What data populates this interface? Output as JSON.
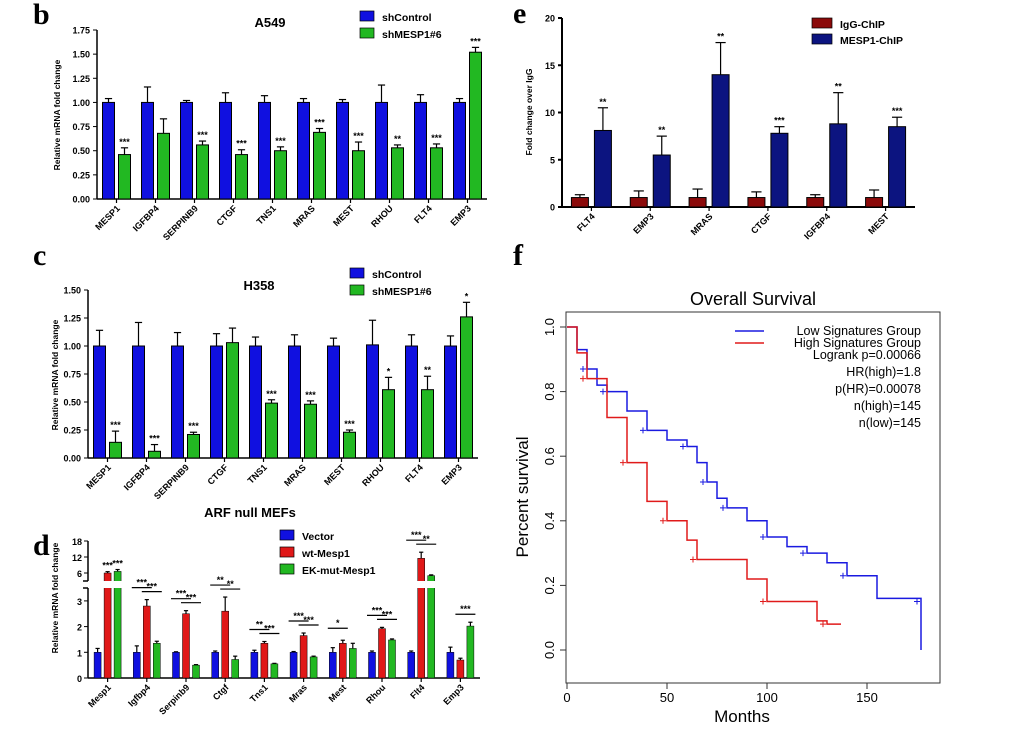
{
  "chart_data": [
    {
      "panel": "b",
      "type": "bar",
      "title": "A549",
      "ylabel": "Relative mRNA fold change",
      "xlabel": "",
      "ylim": [
        0,
        1.75
      ],
      "yticks": [
        "0.00",
        "0.25",
        "0.50",
        "0.75",
        "1.00",
        "1.25",
        "1.50",
        "1.75"
      ],
      "categories": [
        "MESP1",
        "IGFBP4",
        "SERPINB9",
        "CTGF",
        "TNS1",
        "MRAS",
        "MEST",
        "RHOU",
        "FLT4",
        "EMP3"
      ],
      "legend_position": "top-right",
      "series": [
        {
          "name": "shControl",
          "color": "#1010e0",
          "values": [
            1,
            1,
            1,
            1,
            1,
            1,
            1,
            1,
            1,
            1
          ],
          "errors": [
            0.04,
            0.16,
            0.02,
            0.1,
            0.07,
            0.04,
            0.03,
            0.18,
            0.08,
            0.04
          ],
          "significance": [
            "",
            "",
            "",
            "",
            "",
            "",
            "",
            "",
            "",
            ""
          ]
        },
        {
          "name": "shMESP1#6",
          "color": "#22b822",
          "values": [
            0.46,
            0.68,
            0.56,
            0.46,
            0.5,
            0.69,
            0.5,
            0.53,
            0.53,
            1.52
          ],
          "errors": [
            0.07,
            0.15,
            0.04,
            0.05,
            0.04,
            0.04,
            0.09,
            0.03,
            0.04,
            0.05
          ],
          "significance": [
            "***",
            "",
            "***",
            "***",
            "***",
            "***",
            "***",
            "**",
            "***",
            "***"
          ]
        }
      ]
    },
    {
      "panel": "c",
      "type": "bar",
      "title": "H358",
      "ylabel": "Relative mRNA fold change",
      "xlabel": "",
      "ylim": [
        0,
        1.5
      ],
      "yticks": [
        "0.00",
        "0.25",
        "0.50",
        "0.75",
        "1.00",
        "1.25",
        "1.50"
      ],
      "categories": [
        "MESP1",
        "IGFBP4",
        "SERPINB9",
        "CTGF",
        "TNS1",
        "MRAS",
        "MEST",
        "RHOU",
        "FLT4",
        "EMP3"
      ],
      "legend_position": "top-right",
      "series": [
        {
          "name": "shControl",
          "color": "#1010e0",
          "values": [
            1,
            1,
            1,
            1,
            1,
            1,
            1,
            1.01,
            1,
            1
          ],
          "errors": [
            0.14,
            0.21,
            0.12,
            0.11,
            0.08,
            0.1,
            0.07,
            0.22,
            0.1,
            0.09
          ],
          "significance": [
            "",
            "",
            "",
            "",
            "",
            "",
            "",
            "",
            "",
            ""
          ]
        },
        {
          "name": "shMESP1#6",
          "color": "#22b822",
          "values": [
            0.14,
            0.06,
            0.21,
            1.03,
            0.49,
            0.48,
            0.23,
            0.61,
            0.61,
            1.26
          ],
          "errors": [
            0.1,
            0.06,
            0.02,
            0.13,
            0.03,
            0.03,
            0.02,
            0.11,
            0.12,
            0.13
          ],
          "significance": [
            "***",
            "***",
            "***",
            "",
            "***",
            "***",
            "***",
            "*",
            "**",
            "*"
          ]
        }
      ]
    },
    {
      "panel": "d",
      "type": "bar",
      "title": "ARF null MEFs",
      "ylabel": "Relative mRNA fold change",
      "xlabel": "",
      "ylim": [
        0,
        18
      ],
      "axis_break": [
        3.5,
        4
      ],
      "yticks_lower": [
        "0",
        "1",
        "2",
        "3"
      ],
      "yticks_upper": [
        "6",
        "12",
        "18"
      ],
      "categories": [
        "Mesp1",
        "Igfbp4",
        "Serpinb9",
        "Ctgf",
        "Tns1",
        "Mras",
        "Mest",
        "Rhou",
        "Flt4",
        "Emp3"
      ],
      "legend_position": "top-center",
      "series": [
        {
          "name": "Vector",
          "color": "#1010e0",
          "values": [
            1,
            1,
            1,
            1,
            1,
            1,
            1,
            1,
            1,
            1
          ],
          "errors": [
            0.15,
            0.25,
            0.02,
            0.05,
            0.08,
            0.03,
            0.18,
            0.05,
            0.05,
            0.2
          ],
          "significance": [
            "",
            "",
            "",
            "",
            "",
            "",
            "",
            "",
            "",
            ""
          ]
        },
        {
          "name": "wt-Mesp1",
          "color": "#e01818",
          "values": [
            6,
            2.8,
            2.5,
            2.6,
            1.35,
            1.65,
            1.35,
            1.92,
            11.5,
            0.7
          ],
          "errors": [
            0.5,
            0.25,
            0.12,
            0.55,
            0.07,
            0.1,
            0.12,
            0.05,
            2.3,
            0.07
          ],
          "significance": [
            "***",
            "",
            "",
            "",
            "",
            "",
            "",
            "",
            "",
            ""
          ]
        },
        {
          "name": "EK-mut-Mesp1",
          "color": "#22b822",
          "values": [
            6.6,
            1.35,
            0.5,
            0.72,
            0.55,
            0.82,
            1.15,
            1.48,
            5,
            2.02
          ],
          "errors": [
            0.7,
            0.08,
            0.02,
            0.13,
            0.02,
            0.03,
            0.2,
            0.04,
            0.3,
            0.15
          ],
          "significance": [
            "***",
            "",
            "",
            "",
            "",
            "",
            "",
            "",
            "",
            ""
          ]
        }
      ],
      "comparisons": [
        [],
        [
          {
            "from": 0,
            "to": 1,
            "label": "***"
          },
          {
            "from": 1,
            "to": 2,
            "label": "***"
          }
        ],
        [
          {
            "from": 0,
            "to": 1,
            "label": "***"
          },
          {
            "from": 1,
            "to": 2,
            "label": "***"
          }
        ],
        [
          {
            "from": 0,
            "to": 1,
            "label": "**"
          },
          {
            "from": 1,
            "to": 2,
            "label": "**"
          }
        ],
        [
          {
            "from": 0,
            "to": 1,
            "label": "**"
          },
          {
            "from": 1,
            "to": 2,
            "label": "***"
          }
        ],
        [
          {
            "from": 0,
            "to": 1,
            "label": "***"
          },
          {
            "from": 1,
            "to": 2,
            "label": "***"
          }
        ],
        [
          {
            "from": 0,
            "to": 1,
            "label": "*"
          }
        ],
        [
          {
            "from": 0,
            "to": 1,
            "label": "***"
          },
          {
            "from": 1,
            "to": 2,
            "label": "***"
          }
        ],
        [
          {
            "from": 0,
            "to": 1,
            "label": "***"
          },
          {
            "from": 1,
            "to": 2,
            "label": "**"
          }
        ],
        [
          {
            "from": 1,
            "to": 2,
            "label": "***"
          }
        ]
      ]
    },
    {
      "panel": "e",
      "type": "bar",
      "title": "",
      "ylabel": "Fold change over IgG",
      "xlabel": "",
      "ylim": [
        0,
        20
      ],
      "yticks": [
        "0",
        "5",
        "10",
        "15",
        "20"
      ],
      "categories": [
        "FLT4",
        "EMP3",
        "MRAS",
        "CTGF",
        "IGFBP4",
        "MEST"
      ],
      "legend_position": "top-right",
      "series": [
        {
          "name": "IgG-ChIP",
          "color": "#8b0a0a",
          "values": [
            1,
            1,
            1,
            1,
            1,
            1
          ],
          "errors": [
            0.3,
            0.7,
            0.9,
            0.6,
            0.3,
            0.8
          ],
          "significance": [
            "",
            "",
            "",
            "",
            "",
            ""
          ]
        },
        {
          "name": "MESP1-ChIP",
          "color": "#0c1480",
          "values": [
            8.1,
            5.5,
            14,
            7.8,
            8.8,
            8.5
          ],
          "errors": [
            2.4,
            2.0,
            3.4,
            0.7,
            3.3,
            1.0
          ],
          "significance": [
            "**",
            "**",
            "**",
            "***",
            "**",
            "***"
          ]
        }
      ]
    },
    {
      "panel": "f",
      "type": "line",
      "title": "Overall Survival",
      "xlabel": "Months",
      "ylabel": "Percent survival",
      "xlim": [
        0,
        180
      ],
      "ylim": [
        0,
        1.0
      ],
      "xticks": [
        "0",
        "50",
        "100",
        "150"
      ],
      "yticks": [
        "0.0",
        "0.2",
        "0.4",
        "0.6",
        "0.8",
        "1.0"
      ],
      "legend_position": "top-right",
      "stats": [
        "Logrank p=0.00066",
        "HR(high)=1.8",
        "p(HR)=0.00078",
        "n(high)=145",
        "n(low)=145"
      ],
      "series": [
        {
          "name": "Low Signatures Group",
          "color": "#1a1ae0",
          "x": [
            0,
            5,
            10,
            15,
            20,
            30,
            40,
            50,
            60,
            65,
            70,
            75,
            80,
            90,
            100,
            110,
            120,
            130,
            140,
            155,
            177,
            177
          ],
          "y": [
            1.0,
            0.93,
            0.87,
            0.82,
            0.8,
            0.74,
            0.68,
            0.65,
            0.63,
            0.58,
            0.52,
            0.47,
            0.44,
            0.4,
            0.35,
            0.32,
            0.3,
            0.27,
            0.23,
            0.16,
            0.15,
            0.0
          ]
        },
        {
          "name": "High Signatures Group",
          "color": "#e01a1a",
          "x": [
            0,
            5,
            10,
            20,
            30,
            40,
            50,
            60,
            65,
            90,
            100,
            125,
            130,
            137
          ],
          "y": [
            1.0,
            0.92,
            0.84,
            0.72,
            0.58,
            0.46,
            0.4,
            0.34,
            0.28,
            0.22,
            0.15,
            0.09,
            0.08,
            0.08
          ]
        }
      ]
    }
  ]
}
